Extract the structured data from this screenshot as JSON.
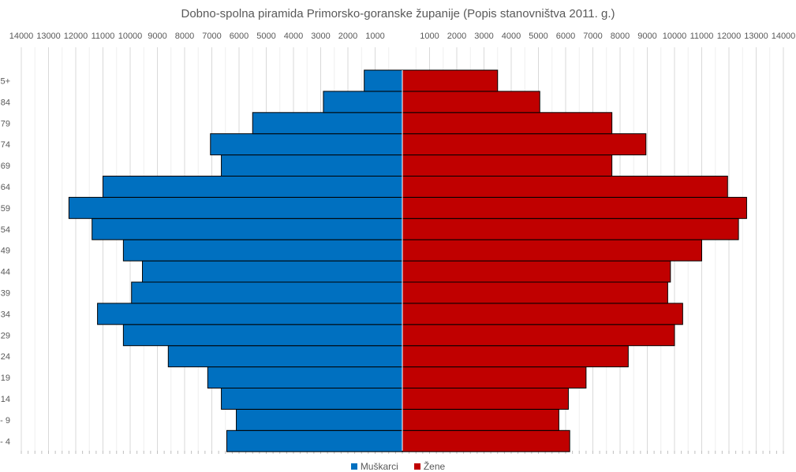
{
  "chart_data": {
    "type": "bar",
    "orientation": "horizontal-population-pyramid",
    "title": "Dobno-spolna piramida Primorsko-goranske županije (Popis stanovništva 2011. g.)",
    "categories": [
      "- 4",
      "- 9",
      "14",
      "19",
      "24",
      "29",
      "34",
      "39",
      "44",
      "49",
      "54",
      "59",
      "64",
      "69",
      "74",
      "79",
      "84",
      "5+"
    ],
    "series": [
      {
        "name": "Muškarci",
        "color": "#0070c0",
        "values": [
          6450,
          6100,
          6650,
          7150,
          8600,
          10250,
          11200,
          9950,
          9550,
          10250,
          11400,
          12250,
          11000,
          6650,
          7050,
          5500,
          2900,
          1400
        ]
      },
      {
        "name": "Žene",
        "color": "#c00000",
        "values": [
          6150,
          5750,
          6100,
          6750,
          8300,
          10000,
          10300,
          9750,
          9850,
          11000,
          12350,
          12650,
          11950,
          7700,
          8950,
          7700,
          5050,
          3500
        ]
      }
    ],
    "x_tick_labels_left": [
      "14000",
      "13000",
      "12000",
      "11000",
      "10000",
      "9000",
      "8000",
      "7000",
      "6000",
      "5000",
      "4000",
      "3000",
      "2000",
      "1000"
    ],
    "x_tick_labels_right": [
      "1000",
      "2000",
      "3000",
      "4000",
      "5000",
      "6000",
      "7000",
      "8000",
      "9000",
      "10000",
      "11000",
      "12000",
      "13000",
      "14000"
    ],
    "xlim": [
      -14000,
      14000
    ],
    "grid": true,
    "legend_position": "bottom"
  }
}
